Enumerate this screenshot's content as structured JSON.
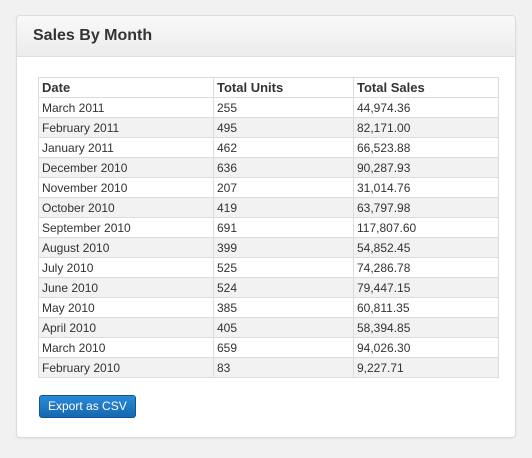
{
  "panel": {
    "title": "Sales By Month"
  },
  "table": {
    "headers": [
      "Date",
      "Total Units",
      "Total Sales"
    ],
    "rows": [
      [
        "March 2011",
        "255",
        "44,974.36"
      ],
      [
        "February 2011",
        "495",
        "82,171.00"
      ],
      [
        "January 2011",
        "462",
        "66,523.88"
      ],
      [
        "December 2010",
        "636",
        "90,287.93"
      ],
      [
        "November 2010",
        "207",
        "31,014.76"
      ],
      [
        "October 2010",
        "419",
        "63,797.98"
      ],
      [
        "September 2010",
        "691",
        "117,807.60"
      ],
      [
        "August 2010",
        "399",
        "54,852.45"
      ],
      [
        "July 2010",
        "525",
        "74,286.78"
      ],
      [
        "June 2010",
        "524",
        "79,447.15"
      ],
      [
        "May 2010",
        "385",
        "60,811.35"
      ],
      [
        "April 2010",
        "405",
        "58,394.85"
      ],
      [
        "March 2010",
        "659",
        "94,026.30"
      ],
      [
        "February 2010",
        "83",
        "9,227.71"
      ]
    ]
  },
  "actions": {
    "export_label": "Export as CSV"
  },
  "colors": {
    "button": "#1d74c0",
    "row_stripe": "#f2f2f2",
    "border": "#dcdcdc"
  }
}
